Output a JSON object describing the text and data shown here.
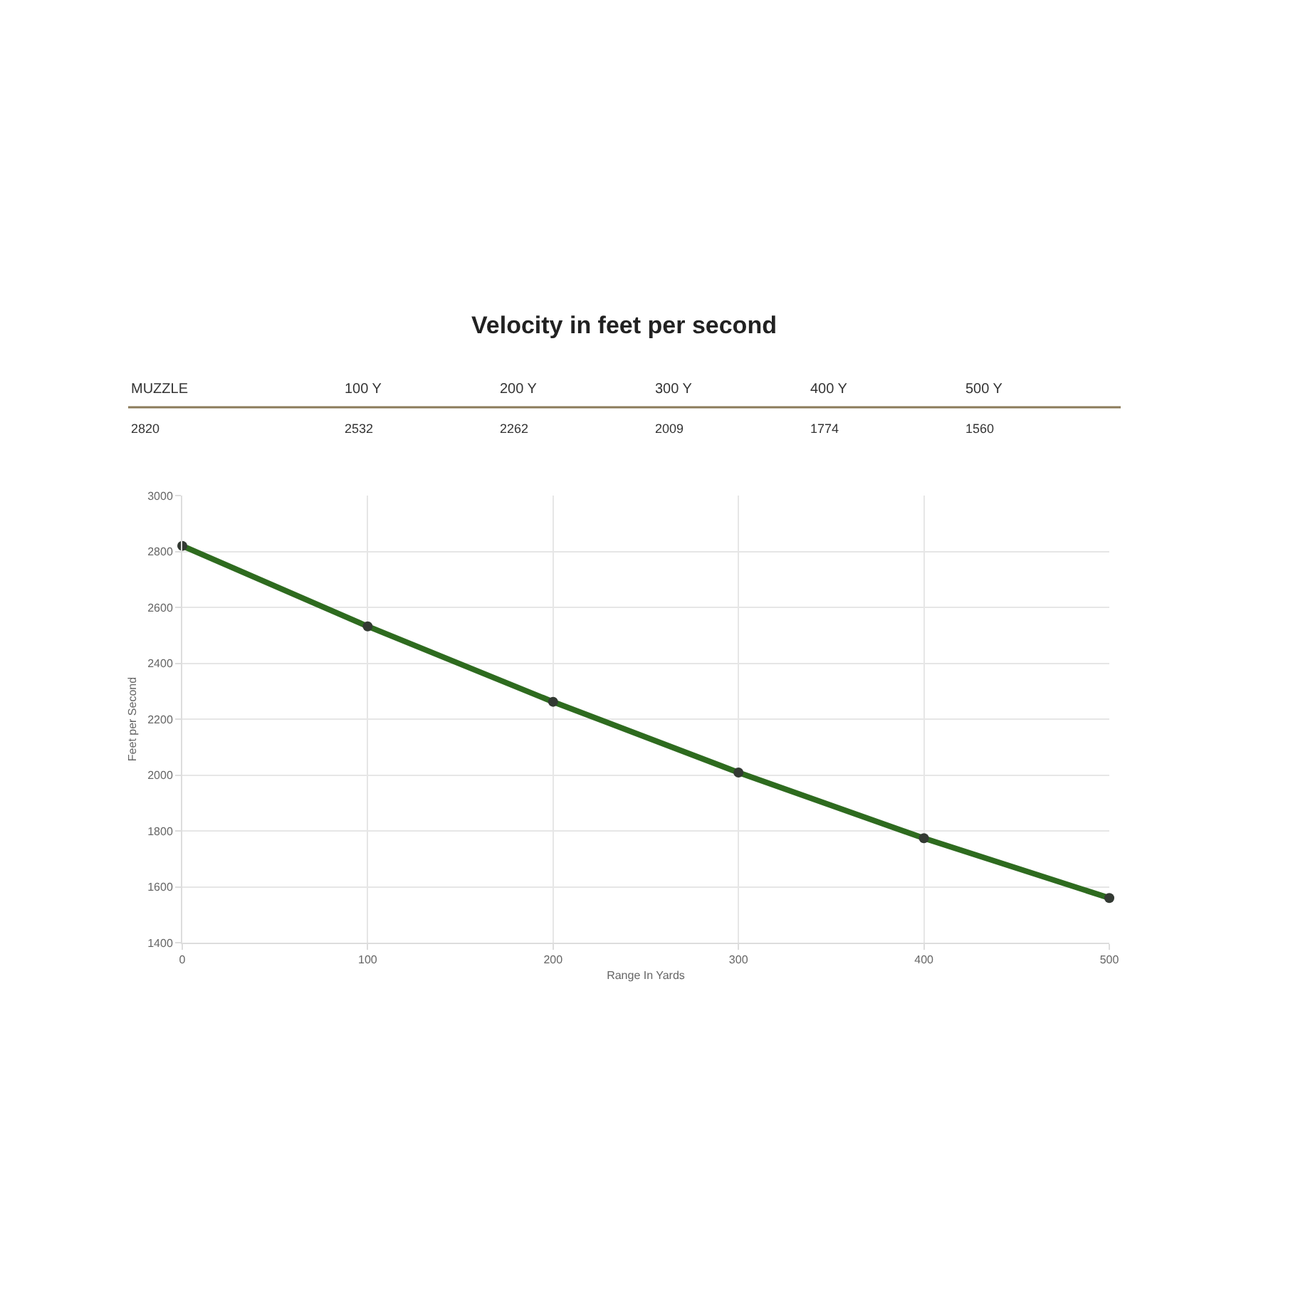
{
  "chart_data": {
    "type": "line",
    "title": "Velocity in feet per second",
    "xlabel": "Range In Yards",
    "ylabel": "Feet per Second",
    "x": [
      0,
      100,
      200,
      300,
      400,
      500
    ],
    "series": [
      {
        "color": "#2e6b1f",
        "values": [
          2820,
          2532,
          2262,
          2009,
          1774,
          1560
        ]
      }
    ],
    "annotations": [
      "MUZZLE",
      "100 Y",
      "200 Y",
      "300 Y",
      "400 Y",
      "500 Y",
      "2820",
      "2532",
      "2262",
      "2009",
      "1774",
      "1560"
    ],
    "xlim": [
      0,
      500
    ],
    "xticks": [
      0,
      100,
      200,
      300,
      400,
      500
    ],
    "ylim": [
      1400,
      3000
    ],
    "yticks": [
      1400,
      1600,
      1800,
      2000,
      2200,
      2400,
      2600,
      2800,
      3000
    ],
    "grid": true,
    "marker": "circle",
    "line_style": "solid",
    "legend": false
  }
}
